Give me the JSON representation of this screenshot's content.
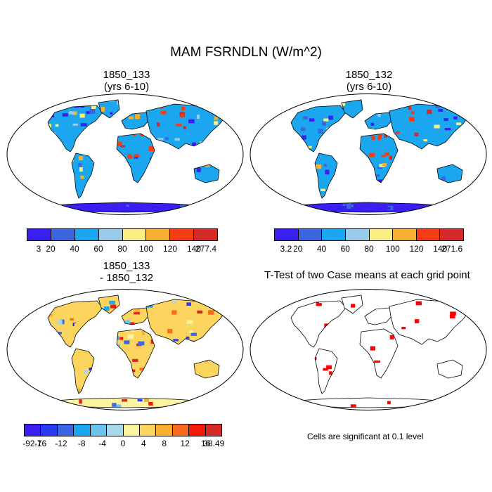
{
  "figure": {
    "title": "MAM FSRNDLN (W/m^2)"
  },
  "panels": [
    {
      "title_line1": "1850_133",
      "title_line2": "(yrs 6-10)",
      "colorbar_labels": [
        "3",
        "20",
        "40",
        "60",
        "80",
        "100",
        "120",
        "140",
        "277.4"
      ],
      "colors": [
        "#3a1ff2",
        "#3b66e0",
        "#1aa7f0",
        "#99ccea",
        "#fbee84",
        "#f9b030",
        "#f73c14",
        "#d42a2a"
      ]
    },
    {
      "title_line1": "1850_132",
      "title_line2": "(yrs 6-10)",
      "colorbar_labels": [
        "3.2",
        "20",
        "40",
        "60",
        "80",
        "100",
        "120",
        "140",
        "271.6"
      ],
      "colors": [
        "#3a1ff2",
        "#3b66e0",
        "#1aa7f0",
        "#99ccea",
        "#fbee84",
        "#f9b030",
        "#f73c14",
        "#d42a2a"
      ]
    },
    {
      "title_line1": "1850_133",
      "title_line2": "- 1850_132",
      "colorbar_labels": [
        "-92.7",
        "-16",
        "-12",
        "-8",
        "-4",
        "0",
        "4",
        "8",
        "12",
        "16",
        "38.49"
      ],
      "colors": [
        "#3a1ff2",
        "#2a3af0",
        "#3b66e0",
        "#1aa7f0",
        "#6cc4ee",
        "#a8d6ea",
        "#fbf3a0",
        "#fbd55e",
        "#f9b030",
        "#f76c1c",
        "#f31a0a",
        "#d42a2a"
      ]
    },
    {
      "title_line1": "T-Test of two Case means at each grid point",
      "note": "Cells are significant at 0.1 level",
      "sig_color": "#ff0000"
    }
  ]
}
